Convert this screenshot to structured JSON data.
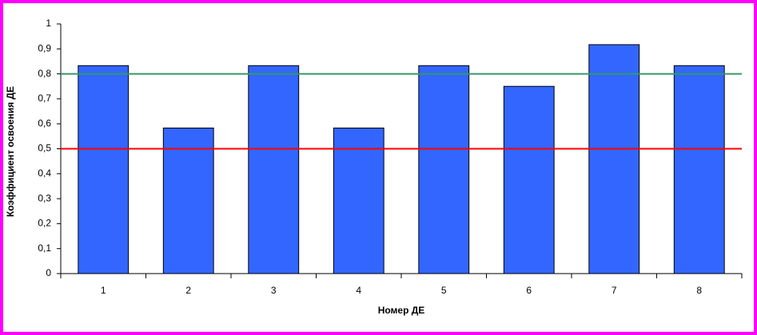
{
  "chart_data": {
    "type": "bar",
    "x_label": "Номер ДЕ",
    "y_label": "Коэффициент освоения ДЕ",
    "categories": [
      "1",
      "2",
      "3",
      "4",
      "5",
      "6",
      "7",
      "8"
    ],
    "values": [
      0.833,
      0.583,
      0.833,
      0.583,
      0.833,
      0.75,
      0.917,
      0.833
    ],
    "color": "#3366ff",
    "ylim": [
      0,
      1
    ],
    "yticks": [
      0,
      {
        "value": 0.1,
        "label": "0,1"
      },
      {
        "value": 0.2,
        "label": "0,2"
      },
      {
        "value": 0.3,
        "label": "0,3"
      },
      {
        "value": 0.4,
        "label": "0,4"
      },
      {
        "value": 0.5,
        "label": "0,5"
      },
      {
        "value": 0.6,
        "label": "0,6"
      },
      {
        "value": 0.7,
        "label": "0,7"
      },
      {
        "value": 0.8,
        "label": "0,8"
      },
      {
        "value": 0.9,
        "label": "0,9"
      },
      1
    ],
    "reference_lines": [
      {
        "value": 0.8,
        "color": "#339966"
      },
      {
        "value": 0.5,
        "color": "#ff0000"
      }
    ],
    "grid": false
  }
}
